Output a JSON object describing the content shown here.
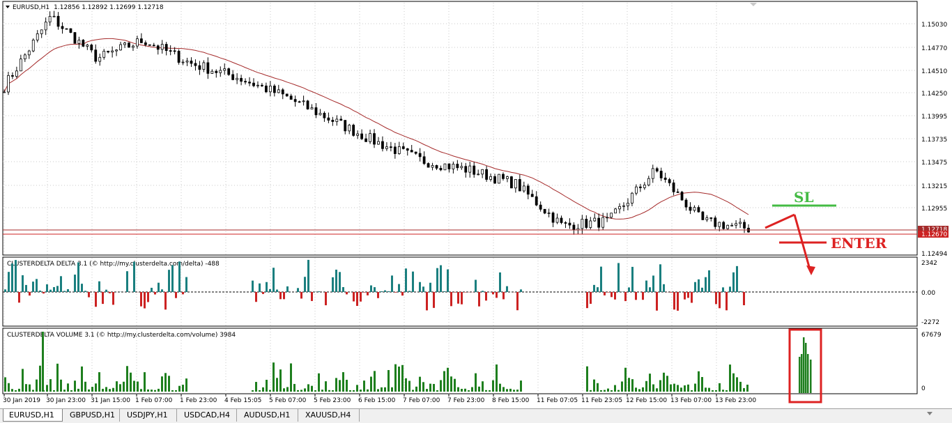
{
  "main_header": {
    "symbol": "EURUSD,H1",
    "ohlc": "1.12856 1.12892 1.12699 1.12718"
  },
  "price_axis": {
    "labels": [
      "1.15030",
      "1.14770",
      "1.14510",
      "1.14250",
      "1.13995",
      "1.13735",
      "1.13475",
      "1.13215",
      "1.12955",
      "1.12494"
    ],
    "current_price_1": "1.12718",
    "current_price_2": "1.12670"
  },
  "annotations": {
    "sl": "SL",
    "enter": "ENTER"
  },
  "delta_panel": {
    "title": "CLUSTERDELTA DELTA 3.1 (© http://my.clusterdelta.com/delta) -488",
    "axis_top": "2342",
    "axis_mid": "0.00",
    "axis_bottom": "-2272"
  },
  "volume_panel": {
    "title": "CLUSTERDELTA VOLUME 3.1 (© http://my.clusterdelta.com/volume) 3984",
    "axis_top": "67679",
    "axis_bottom": "0"
  },
  "time_axis": [
    "30 Jan 2019",
    "30 Jan 23:00",
    "31 Jan 15:00",
    "1 Feb 07:00",
    "1 Feb 23:00",
    "4 Feb 15:05",
    "5 Feb 07:00",
    "5 Feb 23:00",
    "6 Feb 15:00",
    "7 Feb 07:00",
    "7 Feb 23:00",
    "8 Feb 15:00",
    "11 Feb 07:05",
    "11 Feb 23:05",
    "12 Feb 15:00",
    "13 Feb 07:00",
    "13 Feb 23:00"
  ],
  "tabs": [
    "EURUSD,H1",
    "GBPUSD,H1",
    "USDJPY,H1",
    "USDCAD,H4",
    "AUDUSD,H1",
    "XAUUSD,H4"
  ],
  "colors": {
    "bull_delta": "#1a7f7f",
    "bear_delta": "#cc2222",
    "volume": "#1e7f1e",
    "ma": "#a52a2a",
    "sl": "#44bb44",
    "enter": "#dd2222"
  },
  "chart_data": {
    "type": "candlestick",
    "symbol": "EURUSD",
    "timeframe": "H1",
    "y_range": [
      1.1245,
      1.1515
    ],
    "price_path_keypoints": [
      {
        "x": "30 Jan 2019",
        "close": 1.1425
      },
      {
        "x": "30 Jan 23:00",
        "close": 1.15
      },
      {
        "x": "31 Jan 15:00",
        "close": 1.1455
      },
      {
        "x": "1 Feb 07:00",
        "close": 1.1475
      },
      {
        "x": "1 Feb 23:00",
        "close": 1.145
      },
      {
        "x": "4 Feb 15:05",
        "close": 1.1435
      },
      {
        "x": "5 Feb 07:00",
        "close": 1.1415
      },
      {
        "x": "5 Feb 23:00",
        "close": 1.139
      },
      {
        "x": "6 Feb 15:00",
        "close": 1.1365
      },
      {
        "x": "7 Feb 07:00",
        "close": 1.1345
      },
      {
        "x": "7 Feb 23:00",
        "close": 1.1335
      },
      {
        "x": "8 Feb 15:00",
        "close": 1.132
      },
      {
        "x": "11 Feb 07:05",
        "close": 1.1275
      },
      {
        "x": "11 Feb 23:05",
        "close": 1.128
      },
      {
        "x": "12 Feb 15:00",
        "close": 1.1335
      },
      {
        "x": "13 Feb 07:00",
        "close": 1.128
      },
      {
        "x": "13 Feb 23:00",
        "close": 1.1272
      }
    ]
  }
}
